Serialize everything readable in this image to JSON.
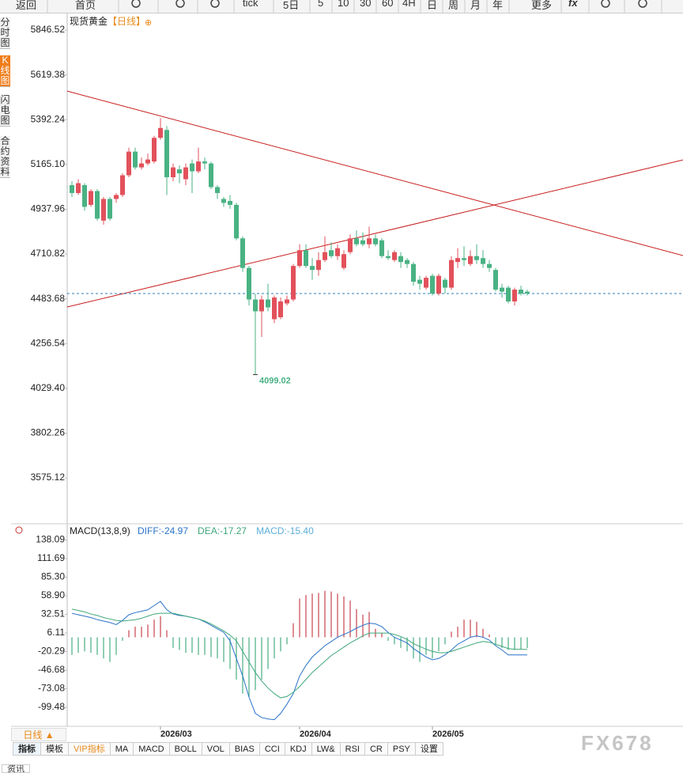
{
  "toolbar": [
    "返回",
    "首页",
    "tick",
    "5日",
    "5",
    "10",
    "30",
    "60",
    "4H",
    "日",
    "周",
    "月",
    "年",
    "更多",
    "fx"
  ],
  "sidebar": [
    "分时图",
    "K线图",
    "闪电图",
    "合约资料"
  ],
  "period_button": "日线 ▲",
  "tabs": [
    "指标",
    "模板",
    "VIP指标",
    "MA",
    "MACD",
    "BOLL",
    "VOL",
    "BIAS",
    "CCI",
    "KDJ",
    "LW&",
    "RSI",
    "CR",
    "PSY",
    "设置"
  ],
  "footer_tab": "资讯",
  "watermark": "FX678",
  "chart_data": [
    {
      "type": "candlestick",
      "title": "现货黄金",
      "subtitle": "【日线】",
      "title_icon": "⊕",
      "categories": [
        null,
        null,
        null,
        null,
        null,
        null,
        null,
        null,
        null,
        null,
        null,
        null,
        null,
        null,
        "2026/03",
        null,
        null,
        null,
        null,
        null,
        null,
        null,
        null,
        null,
        null,
        null,
        null,
        null,
        null,
        null,
        null,
        null,
        null,
        null,
        null,
        null,
        "2026/04",
        null,
        null,
        null,
        null,
        null,
        null,
        null,
        null,
        null,
        null,
        null,
        null,
        null,
        null,
        null,
        null,
        null,
        null,
        null,
        null,
        "2026/05",
        null,
        null,
        null,
        null,
        null,
        null,
        null,
        null,
        null,
        null,
        null,
        null,
        null,
        null,
        null
      ],
      "ohlc": {
        "open": [
          5060,
          5020,
          5060,
          4960,
          5030,
          4880,
          4990,
          4990,
          5010,
          5110,
          5230,
          5150,
          5170,
          5180,
          5300,
          5340,
          5100,
          5140,
          5090,
          5170,
          5130,
          5180,
          5170,
          5050,
          4990,
          4980,
          4960,
          4790,
          4640,
          4480,
          4420,
          4480,
          4380,
          4390,
          4460,
          4480,
          4650,
          4730,
          4650,
          4630,
          4680,
          4730,
          4700,
          4640,
          4720,
          4790,
          4780,
          4760,
          4790,
          4780,
          4700,
          4680,
          4700,
          4680,
          4660,
          4580,
          4540,
          4600,
          4510,
          4580,
          4540,
          4670,
          4690,
          4660,
          4700,
          4690,
          4660,
          4630,
          4540,
          4540,
          4470,
          4530,
          4520
        ],
        "high": [
          5080,
          5090,
          5070,
          5040,
          5040,
          5000,
          5000,
          5020,
          5120,
          5250,
          5250,
          5200,
          5220,
          5310,
          5400,
          5360,
          5170,
          5160,
          5170,
          5190,
          5250,
          5200,
          5180,
          5060,
          5000,
          5010,
          4970,
          4800,
          4650,
          4510,
          4500,
          4560,
          4500,
          4490,
          4500,
          4660,
          4760,
          4760,
          4690,
          4720,
          4800,
          4770,
          4760,
          4730,
          4810,
          4830,
          4820,
          4850,
          4810,
          4790,
          4730,
          4730,
          4720,
          4690,
          4670,
          4600,
          4600,
          4610,
          4610,
          4590,
          4700,
          4740,
          4750,
          4730,
          4760,
          4730,
          4680,
          4640,
          4560,
          4550,
          4540,
          4550,
          4530
        ],
        "low": [
          5000,
          5010,
          4930,
          4950,
          4880,
          4860,
          4880,
          4970,
          5000,
          5100,
          5140,
          5140,
          5160,
          5170,
          5290,
          5010,
          5080,
          5070,
          5060,
          5020,
          5120,
          5140,
          5040,
          4990,
          4950,
          4940,
          4780,
          4620,
          4450,
          4099.02,
          4290,
          4420,
          4360,
          4380,
          4450,
          4470,
          4640,
          4640,
          4580,
          4600,
          4670,
          4690,
          4680,
          4630,
          4710,
          4750,
          4750,
          4740,
          4750,
          4690,
          4680,
          4670,
          4640,
          4640,
          4550,
          4530,
          4530,
          4500,
          4500,
          4510,
          4530,
          4640,
          4650,
          4650,
          4660,
          4640,
          4620,
          4520,
          4490,
          4460,
          4450,
          4500,
          4500
        ],
        "close": [
          5020,
          5070,
          4950,
          5030,
          4890,
          4990,
          4890,
          5010,
          5110,
          5230,
          5150,
          5170,
          5190,
          5300,
          5350,
          5100,
          5150,
          5120,
          5150,
          5130,
          5180,
          5170,
          5050,
          5020,
          4970,
          4960,
          4790,
          4640,
          4480,
          4420,
          4480,
          4440,
          4490,
          4470,
          4480,
          4650,
          4730,
          4650,
          4630,
          4680,
          4720,
          4700,
          4740,
          4710,
          4790,
          4760,
          4760,
          4790,
          4760,
          4700,
          4690,
          4720,
          4670,
          4660,
          4570,
          4560,
          4590,
          4510,
          4600,
          4540,
          4680,
          4690,
          4680,
          4700,
          4680,
          4660,
          4640,
          4530,
          4520,
          4470,
          4530,
          4510,
          4510
        ]
      },
      "low_annotation_index": 29,
      "up_color": "#e2515b",
      "down_color": "#49b283",
      "last_price": 4510,
      "last_price_color": "#2f7fb8",
      "trendlines": [
        {
          "start": 5537,
          "end": 4703,
          "color": "#c81e1e"
        },
        {
          "start": 4442,
          "end": 5188,
          "color": "#c81e1e"
        }
      ],
      "ylim": [
        3350.4,
        5918.8
      ],
      "yticks": [
        5846.52,
        5619.38,
        5392.24,
        {
          "value": 5165.1,
          "label": "5165.10"
        },
        4937.96,
        4710.82,
        4483.68,
        4256.54,
        {
          "value": 4029.4,
          "label": "4029.40"
        },
        3802.26,
        3575.12
      ]
    },
    {
      "type": "macd",
      "title": "MACD(13,8,9)",
      "series": [
        {
          "name": "DIFF",
          "readout": "DIFF:-24.97",
          "color": "#2a73c9",
          "values": [
            34,
            32,
            30,
            28,
            25,
            23,
            21,
            18,
            24,
            32,
            35,
            37,
            39,
            45,
            51,
            39,
            33,
            31,
            30,
            28,
            26,
            22,
            17,
            12,
            7,
            -5,
            -30,
            -55,
            -85,
            -108,
            -114,
            -116,
            -117,
            -108,
            -95,
            -80,
            -55,
            -40,
            -28,
            -20,
            -12,
            -6,
            0,
            4,
            8,
            13,
            17,
            20,
            19,
            15,
            7,
            0,
            -4,
            -8,
            -16,
            -22,
            -28,
            -32,
            -30,
            -25,
            -18,
            -10,
            -5,
            0,
            2,
            0,
            -4,
            -12,
            -18,
            -25,
            -25,
            -25,
            -24.97
          ]
        },
        {
          "name": "DEA",
          "readout": "DEA:-17.27",
          "color": "#3ea77a",
          "values": [
            40,
            38,
            36,
            33,
            31,
            28,
            26,
            24,
            23,
            24,
            25,
            27,
            30,
            33,
            34,
            34,
            34,
            32,
            30,
            28,
            26,
            23,
            19,
            14,
            9,
            3,
            -5,
            -20,
            -35,
            -50,
            -62,
            -72,
            -80,
            -86,
            -84,
            -78,
            -70,
            -60,
            -50,
            -42,
            -34,
            -26,
            -20,
            -14,
            -8,
            -3,
            2,
            6,
            6,
            6,
            6,
            4,
            1,
            -3,
            -9,
            -13,
            -17,
            -20,
            -22,
            -22,
            -20,
            -17,
            -14,
            -11,
            -8,
            -6,
            -7,
            -10,
            -13,
            -16,
            -17,
            -17,
            -17.27
          ]
        },
        {
          "name": "MACD",
          "readout": "MACD:-15.40",
          "color": "#5aaed8",
          "up_color": "#c9424c",
          "down_color": "#46ad80",
          "values": [
            -25,
            -22,
            -20,
            -22,
            -25,
            -30,
            -35,
            -25,
            -5,
            10,
            15,
            15,
            18,
            25,
            30,
            10,
            -15,
            -18,
            -22,
            -22,
            -25,
            -25,
            -28,
            -30,
            -35,
            -45,
            -60,
            -80,
            -85,
            -75,
            -60,
            -45,
            -30,
            -20,
            -10,
            20,
            55,
            60,
            62,
            63,
            66,
            65,
            62,
            58,
            52,
            40,
            32,
            36,
            12,
            6,
            -5,
            -10,
            -15,
            -20,
            -30,
            -35,
            -25,
            -30,
            -20,
            -10,
            8,
            15,
            25,
            25,
            22,
            12,
            4,
            -10,
            -15,
            -18,
            -18,
            -17,
            -15.4
          ]
        }
      ],
      "ylim": [
        -126.4,
        145.4
      ],
      "yticks": [
        138.09,
        111.69,
        {
          "value": 85.3,
          "label": "85.30"
        },
        {
          "value": 58.9,
          "label": "58.90"
        },
        32.51,
        6.11,
        -20.29,
        -46.68,
        -73.08,
        -99.48
      ]
    }
  ]
}
